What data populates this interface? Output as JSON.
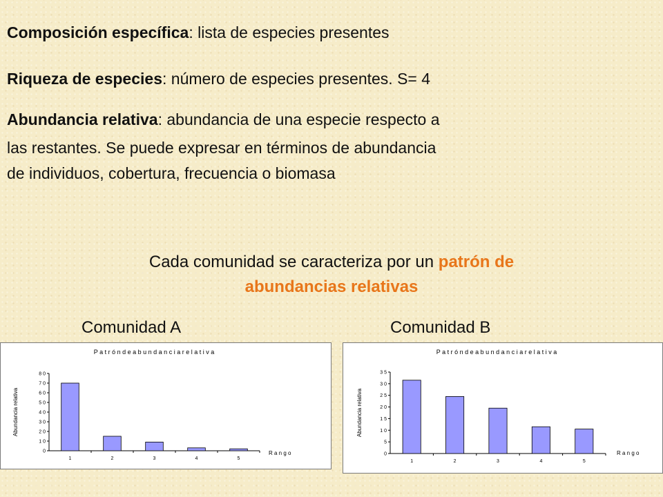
{
  "definitions": {
    "composicion": {
      "term": "Composición específica",
      "text": ": lista de especies presentes"
    },
    "riqueza": {
      "term": "Riqueza de especies",
      "text": ": número de especies presentes. S= 4"
    },
    "abundancia": {
      "term": "Abundancia relativa",
      "line1": ": abundancia de una especie respecto a",
      "line2": "las restantes. Se puede expresar en términos de abundancia",
      "line3": "de individuos, cobertura, frecuencia o biomasa"
    }
  },
  "statement": {
    "part1": "Cada comunidad se caracteriza por un ",
    "highlight1": "patrón de",
    "highlight2": "abundancias relativas",
    "highlight_color": "#e8761a"
  },
  "community_labels": {
    "a": "Comunidad A",
    "b": "Comunidad B"
  },
  "chart_data": [
    {
      "type": "bar",
      "title": "P a t r ó n   d e   a b u n d a n c i a   r e l a t i v a",
      "xlabel": "R a n g o",
      "ylabel": "Abundancia relativa",
      "categories": [
        "1",
        "2",
        "3",
        "4",
        "5"
      ],
      "values": [
        70,
        15,
        9,
        3,
        2
      ],
      "ylim": [
        0,
        80
      ],
      "yticks": [
        "0",
        "1 0",
        "2 0",
        "3 0",
        "4 0",
        "5 0",
        "6 0",
        "7 0",
        "8 0"
      ],
      "bar_color": "#9999ff"
    },
    {
      "type": "bar",
      "title": "P a t r ó n   d e   a b u n d a n c i a   r e l a t i v a",
      "xlabel": "R a n g o",
      "ylabel": "Abundancia relativa",
      "categories": [
        "1",
        "2",
        "3",
        "4",
        "5"
      ],
      "values": [
        31.5,
        24.5,
        19.5,
        11.5,
        10.5
      ],
      "ylim": [
        0,
        35
      ],
      "yticks": [
        "0",
        "5",
        "1 0",
        "1 5",
        "2 0",
        "2 5",
        "3 0",
        "3 5"
      ],
      "bar_color": "#9999ff"
    }
  ]
}
